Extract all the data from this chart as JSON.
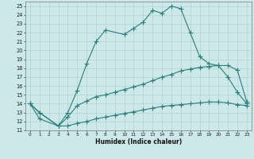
{
  "xlabel": "Humidex (Indice chaleur)",
  "background_color": "#cce8e8",
  "grid_color": "#aacccc",
  "line_color": "#2d7d7d",
  "xlim": [
    -0.5,
    23.5
  ],
  "ylim": [
    11,
    25.5
  ],
  "xticks": [
    0,
    1,
    2,
    3,
    4,
    5,
    6,
    7,
    8,
    9,
    10,
    11,
    12,
    13,
    14,
    15,
    16,
    17,
    18,
    19,
    20,
    21,
    22,
    23
  ],
  "yticks": [
    11,
    12,
    13,
    14,
    15,
    16,
    17,
    18,
    19,
    20,
    21,
    22,
    23,
    24,
    25
  ],
  "line1_x": [
    0,
    1,
    3,
    4,
    5,
    6,
    7,
    8,
    10,
    11,
    12,
    13,
    14,
    15,
    16,
    17,
    18,
    19,
    20,
    21,
    22,
    23
  ],
  "line1_y": [
    14,
    13,
    11.5,
    13.0,
    15.5,
    18.5,
    21.0,
    22.3,
    21.8,
    22.5,
    23.2,
    24.5,
    24.2,
    25.0,
    24.7,
    22.0,
    19.3,
    18.5,
    18.3,
    17.0,
    15.3,
    14.0
  ],
  "line2_x": [
    0,
    1,
    3,
    4,
    5,
    6,
    7,
    8,
    9,
    10,
    11,
    12,
    13,
    14,
    15,
    16,
    17,
    18,
    19,
    20,
    21,
    22,
    23
  ],
  "line2_y": [
    14.0,
    13.0,
    11.5,
    12.5,
    13.8,
    14.3,
    14.8,
    15.0,
    15.3,
    15.6,
    15.9,
    16.2,
    16.6,
    17.0,
    17.3,
    17.7,
    17.9,
    18.1,
    18.2,
    18.3,
    18.3,
    17.8,
    14.2
  ],
  "line3_x": [
    0,
    1,
    3,
    4,
    5,
    6,
    7,
    8,
    9,
    10,
    11,
    12,
    13,
    14,
    15,
    16,
    17,
    18,
    19,
    20,
    21,
    22,
    23
  ],
  "line3_y": [
    14.0,
    12.3,
    11.5,
    11.5,
    11.8,
    12.0,
    12.3,
    12.5,
    12.7,
    12.9,
    13.1,
    13.3,
    13.5,
    13.7,
    13.8,
    13.9,
    14.0,
    14.1,
    14.2,
    14.2,
    14.1,
    13.9,
    13.8
  ]
}
